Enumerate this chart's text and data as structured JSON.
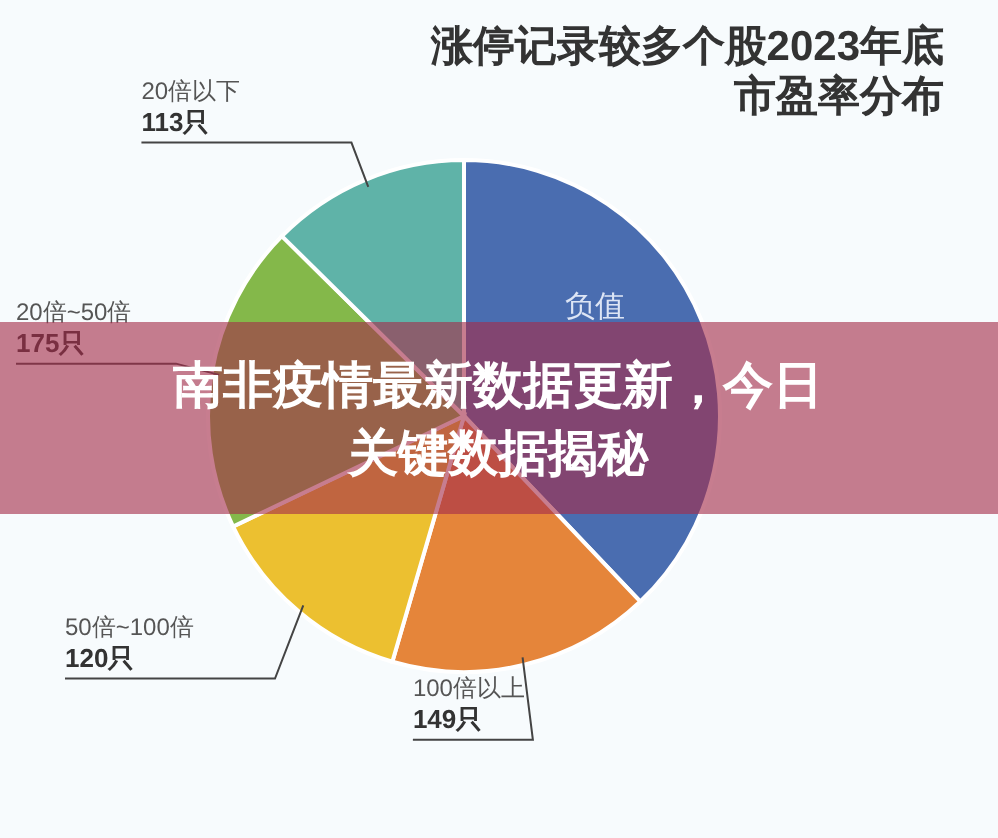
{
  "chart_data": {
    "type": "pie",
    "title": "涨停记录较多个股2023年底市盈率分布",
    "categories": [
      "负值",
      "100倍以上",
      "50倍~100倍",
      "20倍~50倍",
      "20倍以下"
    ],
    "values": [
      340,
      149,
      120,
      175,
      113
    ],
    "value_labels": [
      null,
      "149只",
      "120只",
      "175只",
      "113只"
    ],
    "colors": [
      "#4a6db0",
      "#e5853a",
      "#ecc030",
      "#84b84a",
      "#5fb3a8"
    ],
    "annotations": [
      "南非疫情最新数据更新，今日关键数据揭秘"
    ]
  }
}
